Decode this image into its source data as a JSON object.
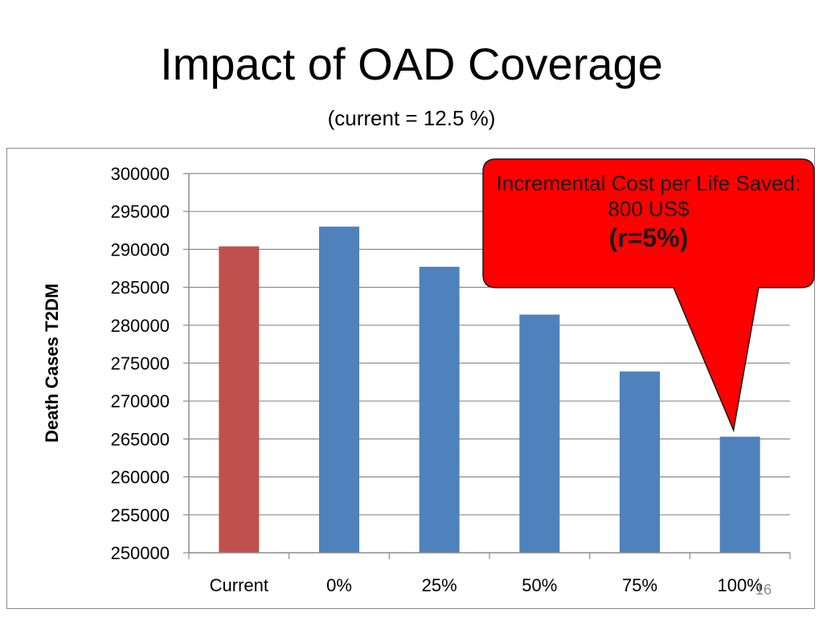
{
  "slide": {
    "title": "Impact of OAD Coverage",
    "subtitle": "(current = 12.5 %)",
    "page_number": "16"
  },
  "callout": {
    "line1": "Incremental Cost per Life Saved: 800 US$",
    "line2": "(r=5%)",
    "fill_color": "#ff0000",
    "points_to": "100%"
  },
  "chart_data": {
    "type": "bar",
    "categories": [
      "Current",
      "0%",
      "25%",
      "50%",
      "75%",
      "100%"
    ],
    "values": [
      290400,
      293000,
      287700,
      281400,
      273900,
      265300
    ],
    "bar_colors": [
      "#c0504d",
      "#4f81bd",
      "#4f81bd",
      "#4f81bd",
      "#4f81bd",
      "#4f81bd"
    ],
    "ylabel": "Death Cases T2DM",
    "xlabel": "",
    "ylim": [
      250000,
      300000
    ],
    "yticks": [
      250000,
      255000,
      260000,
      265000,
      270000,
      275000,
      280000,
      285000,
      290000,
      295000,
      300000
    ],
    "grid": true,
    "legend": "none"
  }
}
